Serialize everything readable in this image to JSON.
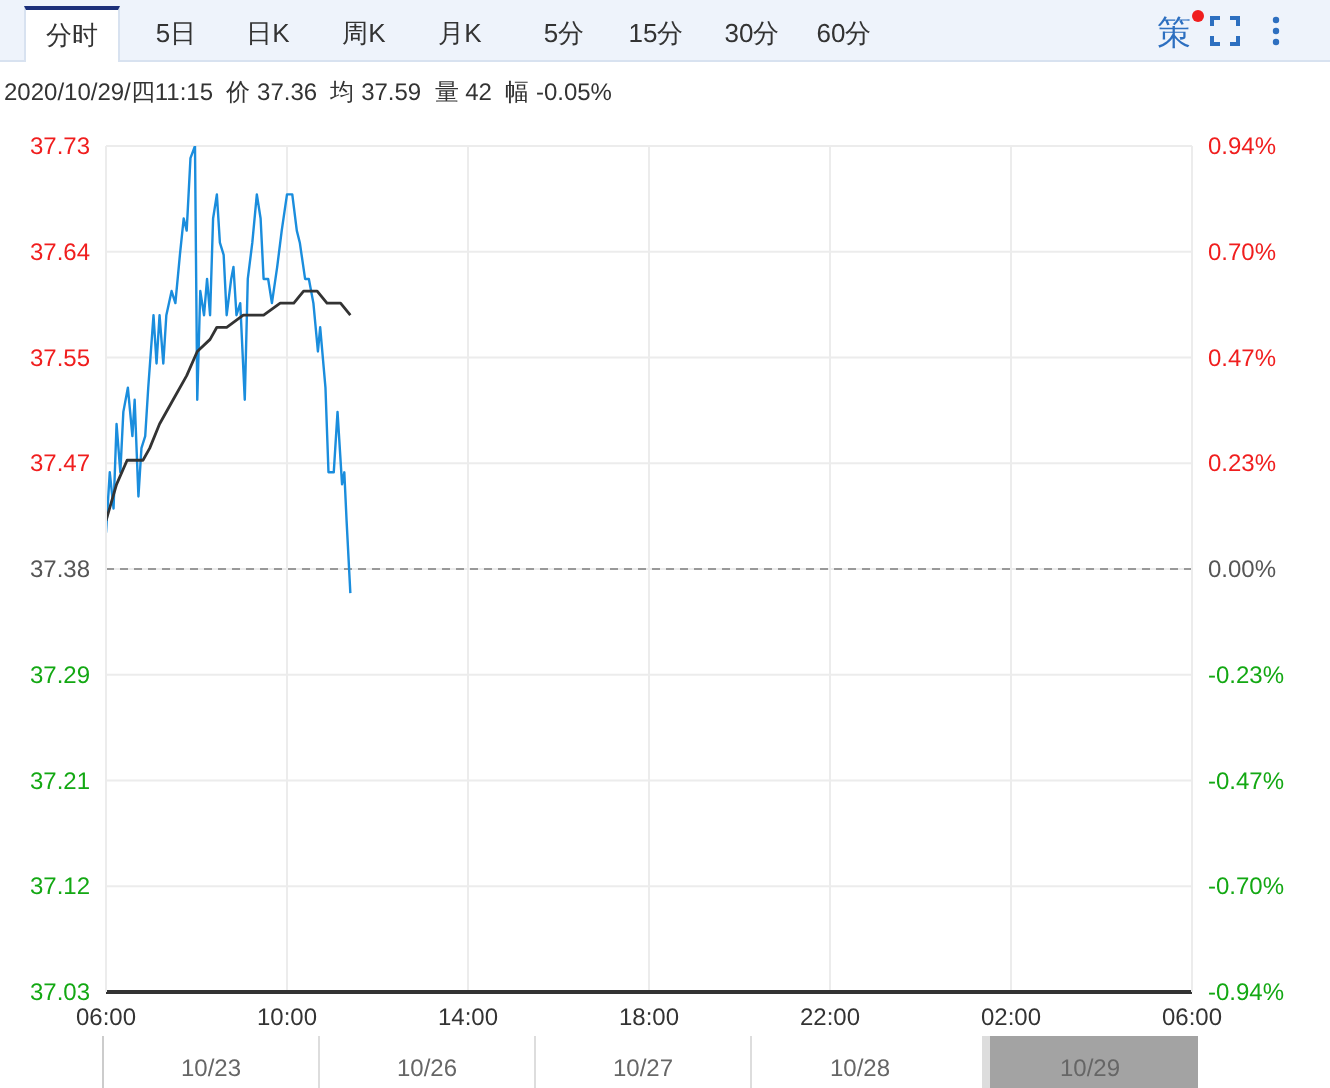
{
  "chart_data": {
    "type": "line",
    "subtitle": "2020/10/29/四11:15  价 37.36  均 37.59  量 42  幅 -0.05%",
    "annotations": [
      "分时",
      "5日",
      "日K",
      "周K",
      "月K",
      "5分",
      "15分",
      "30分",
      "60分",
      "策",
      "10/23",
      "10/26",
      "10/27",
      "10/28",
      "10/29"
    ],
    "xlim": [
      "2020-10-29T06:00",
      "2020-10-30T06:00"
    ],
    "xticks": [
      {
        "value": "2020-10-29T06:00",
        "label": "06:00"
      },
      {
        "value": "2020-10-29T10:00",
        "label": "10:00"
      },
      {
        "value": "2020-10-29T14:00",
        "label": "14:00"
      },
      {
        "value": "2020-10-29T18:00",
        "label": "18:00"
      },
      {
        "value": "2020-10-29T22:00",
        "label": "22:00"
      },
      {
        "value": "2020-10-30T02:00",
        "label": "02:00"
      },
      {
        "value": "2020-10-30T06:00",
        "label": "06:00"
      }
    ],
    "ylim": [
      37.03,
      37.73
    ],
    "yticks": [
      {
        "value": 37.03,
        "label": "37.03"
      },
      {
        "value": 37.1175,
        "label": "37.12"
      },
      {
        "value": 37.205,
        "label": "37.21"
      },
      {
        "value": 37.2925,
        "label": "37.29"
      },
      {
        "value": 37.38,
        "label": "37.38"
      },
      {
        "value": 37.4675,
        "label": "37.47"
      },
      {
        "value": 37.555,
        "label": "37.55"
      },
      {
        "value": 37.6425,
        "label": "37.64"
      },
      {
        "value": 37.73,
        "label": "37.73"
      }
    ],
    "y2lim": [
      -0.94,
      0.94
    ],
    "y2ticks": [
      {
        "value": -0.94,
        "label": "-0.94%"
      },
      {
        "value": -0.705,
        "label": "-0.70%"
      },
      {
        "value": -0.47,
        "label": "-0.47%"
      },
      {
        "value": -0.235,
        "label": "-0.23%"
      },
      {
        "value": 0,
        "label": "0.00%"
      },
      {
        "value": 0.235,
        "label": "0.23%"
      },
      {
        "value": 0.47,
        "label": "0.47%"
      },
      {
        "value": 0.705,
        "label": "0.70%"
      },
      {
        "value": 0.94,
        "label": "0.94%"
      }
    ],
    "grid": true,
    "marker": "none",
    "line_style": "solid",
    "ref_lines": [
      {
        "axis": "y",
        "value": 37.38,
        "color": "#999999",
        "line_style": "dashed"
      }
    ],
    "series": [
      {
        "color": "#1a8ddd",
        "x": [
          "2020-10-29T06:00",
          "2020-10-29T06:05",
          "2020-10-29T06:10",
          "2020-10-29T06:14",
          "2020-10-29T06:19",
          "2020-10-29T06:23",
          "2020-10-29T06:29",
          "2020-10-29T06:35",
          "2020-10-29T06:38",
          "2020-10-29T06:43",
          "2020-10-29T06:47",
          "2020-10-29T06:52",
          "2020-10-29T06:56",
          "2020-10-29T07:03",
          "2020-10-29T07:07",
          "2020-10-29T07:11",
          "2020-10-29T07:16",
          "2020-10-29T07:20",
          "2020-10-29T07:27",
          "2020-10-29T07:32",
          "2020-10-29T07:38",
          "2020-10-29T07:43",
          "2020-10-29T07:47",
          "2020-10-29T07:52",
          "2020-10-29T07:58",
          "2020-10-29T08:01",
          "2020-10-29T08:05",
          "2020-10-29T08:10",
          "2020-10-29T08:14",
          "2020-10-29T08:18",
          "2020-10-29T08:22",
          "2020-10-29T08:27",
          "2020-10-29T08:31",
          "2020-10-29T08:36",
          "2020-10-29T08:40",
          "2020-10-29T08:46",
          "2020-10-29T08:49",
          "2020-10-29T08:53",
          "2020-10-29T08:58",
          "2020-10-29T09:04",
          "2020-10-29T09:08",
          "2020-10-29T09:14",
          "2020-10-29T09:20",
          "2020-10-29T09:25",
          "2020-10-29T09:29",
          "2020-10-29T09:35",
          "2020-10-29T09:40",
          "2020-10-29T09:47",
          "2020-10-29T09:53",
          "2020-10-29T10:00",
          "2020-10-29T10:07",
          "2020-10-29T10:13",
          "2020-10-29T10:17",
          "2020-10-29T10:24",
          "2020-10-29T10:29",
          "2020-10-29T10:35",
          "2020-10-29T10:41",
          "2020-10-29T10:44",
          "2020-10-29T10:51",
          "2020-10-29T10:55",
          "2020-10-29T11:02",
          "2020-10-29T11:07",
          "2020-10-29T11:13",
          "2020-10-29T11:16",
          "2020-10-29T11:19",
          "2020-10-29T11:24"
        ],
        "values": [
          37.41,
          37.46,
          37.43,
          37.5,
          37.46,
          37.51,
          37.53,
          37.49,
          37.52,
          37.44,
          37.48,
          37.49,
          37.53,
          37.59,
          37.55,
          37.59,
          37.55,
          37.59,
          37.61,
          37.6,
          37.64,
          37.67,
          37.66,
          37.72,
          37.73,
          37.52,
          37.61,
          37.59,
          37.62,
          37.59,
          37.67,
          37.69,
          37.65,
          37.64,
          37.59,
          37.62,
          37.63,
          37.59,
          37.6,
          37.52,
          37.62,
          37.65,
          37.69,
          37.67,
          37.62,
          37.62,
          37.6,
          37.63,
          37.66,
          37.69,
          37.69,
          37.66,
          37.65,
          37.62,
          37.62,
          37.6,
          37.56,
          37.58,
          37.53,
          37.46,
          37.46,
          37.51,
          37.45,
          37.46,
          37.42,
          37.36
        ]
      },
      {
        "color": "#333333",
        "x": [
          "2020-10-29T06:00",
          "2020-10-29T06:14",
          "2020-10-29T06:28",
          "2020-10-29T06:40",
          "2020-10-29T06:49",
          "2020-10-29T06:58",
          "2020-10-29T07:11",
          "2020-10-29T07:29",
          "2020-10-29T07:47",
          "2020-10-29T08:01",
          "2020-10-29T08:18",
          "2020-10-29T08:27",
          "2020-10-29T08:40",
          "2020-10-29T09:02",
          "2020-10-29T09:16",
          "2020-10-29T09:29",
          "2020-10-29T09:51",
          "2020-10-29T10:09",
          "2020-10-29T10:22",
          "2020-10-29T10:40",
          "2020-10-29T10:53",
          "2020-10-29T11:11",
          "2020-10-29T11:24"
        ],
        "values": [
          37.42,
          37.45,
          37.47,
          37.47,
          37.47,
          37.48,
          37.5,
          37.52,
          37.54,
          37.56,
          37.57,
          37.58,
          37.58,
          37.59,
          37.59,
          37.59,
          37.6,
          37.6,
          37.61,
          37.61,
          37.6,
          37.6,
          37.59
        ]
      }
    ]
  }
}
